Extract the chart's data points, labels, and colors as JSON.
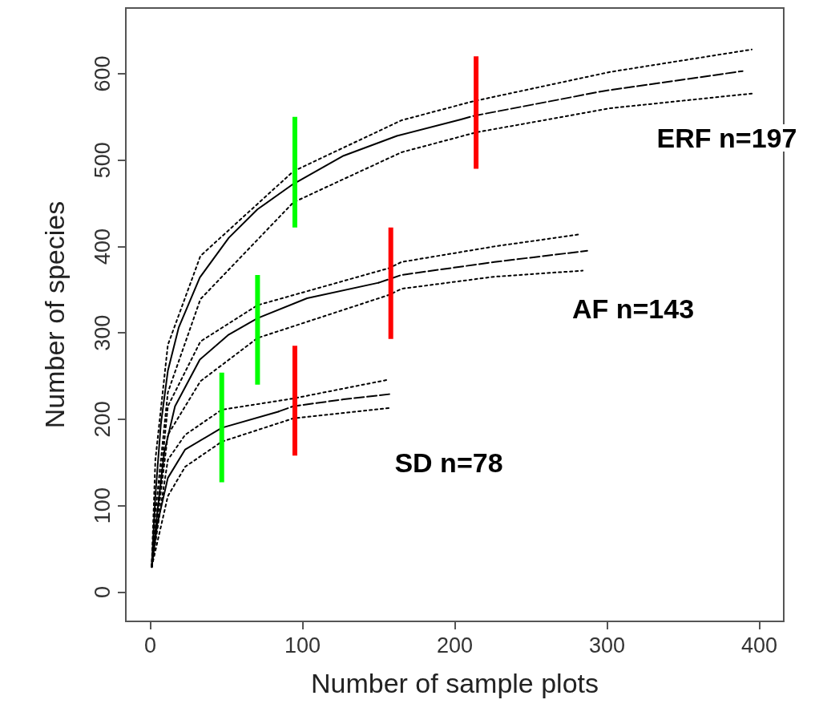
{
  "chart_data": {
    "type": "line",
    "xlabel": "Number of sample plots",
    "ylabel": "Number of species",
    "xlim": [
      -16,
      416
    ],
    "ylim": [
      -34,
      676
    ],
    "xticks": [
      0,
      100,
      200,
      300,
      400
    ],
    "yticks": [
      0,
      100,
      200,
      300,
      400,
      500,
      600
    ],
    "grid": false,
    "marker": "none",
    "series": [
      {
        "color": "#000000",
        "line_style": "solid",
        "x": [
          1,
          3.4,
          7,
          11.6,
          18.7,
          32.6,
          51.6,
          70.5,
          93.7,
          127,
          162,
          204
        ],
        "values": [
          29,
          111,
          194,
          256,
          306,
          364,
          410,
          443,
          472,
          505,
          528,
          547
        ]
      },
      {
        "color": "#000000",
        "line_style": "dashed",
        "x": [
          204,
          212,
          298,
          389
        ],
        "values": [
          547,
          551,
          580,
          603
        ]
      },
      {
        "color": "#000000",
        "line_style": "dotted",
        "x": [
          1,
          3.4,
          11.6,
          33,
          94,
          165,
          212,
          302,
          395
        ],
        "values": [
          29,
          153,
          286,
          389,
          487,
          546,
          568,
          602,
          628
        ]
      },
      {
        "color": "#000000",
        "line_style": "dotted",
        "x": [
          1,
          3.4,
          11.6,
          33,
          94,
          165,
          214,
          302,
          395
        ],
        "values": [
          29,
          91,
          231,
          339,
          451,
          509,
          532,
          560,
          577
        ]
      },
      {
        "color": "#000000",
        "line_style": "solid",
        "x": [
          1,
          4.6,
          9.3,
          16.3,
          32.6,
          51.6,
          70.5,
          103,
          150
        ],
        "values": [
          29,
          91,
          162,
          215,
          269,
          298,
          317,
          340,
          358
        ]
      },
      {
        "color": "#000000",
        "line_style": "dashed",
        "x": [
          150,
          165,
          226,
          287
        ],
        "values": [
          358,
          367,
          382,
          395
        ]
      },
      {
        "color": "#000000",
        "line_style": "dotted",
        "x": [
          1,
          11.6,
          33,
          70.5,
          157,
          165,
          226,
          282
        ],
        "values": [
          29,
          215,
          290,
          332,
          375,
          382,
          400,
          414
        ]
      },
      {
        "color": "#000000",
        "line_style": "dotted",
        "x": [
          1,
          11.6,
          33,
          70.5,
          157,
          165,
          226,
          284
        ],
        "values": [
          29,
          182,
          244,
          294,
          344,
          351,
          365,
          372
        ]
      },
      {
        "color": "#000000",
        "line_style": "solid",
        "x": [
          1,
          4.6,
          11.6,
          23,
          47,
          84.5
        ],
        "values": [
          29,
          78,
          132,
          165,
          190,
          209
        ]
      },
      {
        "color": "#000000",
        "line_style": "dashed",
        "x": [
          84.5,
          94,
          127,
          157
        ],
        "values": [
          209,
          215,
          223,
          229
        ]
      },
      {
        "color": "#000000",
        "line_style": "dotted",
        "x": [
          1,
          11.6,
          23,
          47,
          94,
          157
        ],
        "values": [
          29,
          153,
          182,
          211,
          224,
          246
        ]
      },
      {
        "color": "#000000",
        "line_style": "dotted",
        "x": [
          1,
          11.6,
          23,
          47,
          94,
          157
        ],
        "values": [
          29,
          111,
          145,
          174,
          201,
          213
        ]
      },
      {
        "color": "#00ff00",
        "line_style": "solid",
        "x": [
          95,
          95
        ],
        "values": [
          422,
          550
        ]
      },
      {
        "color": "#ff0000",
        "line_style": "solid",
        "x": [
          214,
          214
        ],
        "values": [
          490,
          620
        ]
      },
      {
        "color": "#00ff00",
        "line_style": "solid",
        "x": [
          70.5,
          70.5
        ],
        "values": [
          240,
          367
        ]
      },
      {
        "color": "#ff0000",
        "line_style": "solid",
        "x": [
          158,
          158
        ],
        "values": [
          293,
          422
        ]
      },
      {
        "color": "#00ff00",
        "line_style": "solid",
        "x": [
          47,
          47
        ],
        "values": [
          127,
          254
        ]
      },
      {
        "color": "#ff0000",
        "line_style": "solid",
        "x": [
          95,
          95
        ],
        "values": [
          158,
          285
        ]
      }
    ],
    "annotations": [
      "ERF n=197",
      "AF n=143",
      "SD n=78"
    ]
  }
}
